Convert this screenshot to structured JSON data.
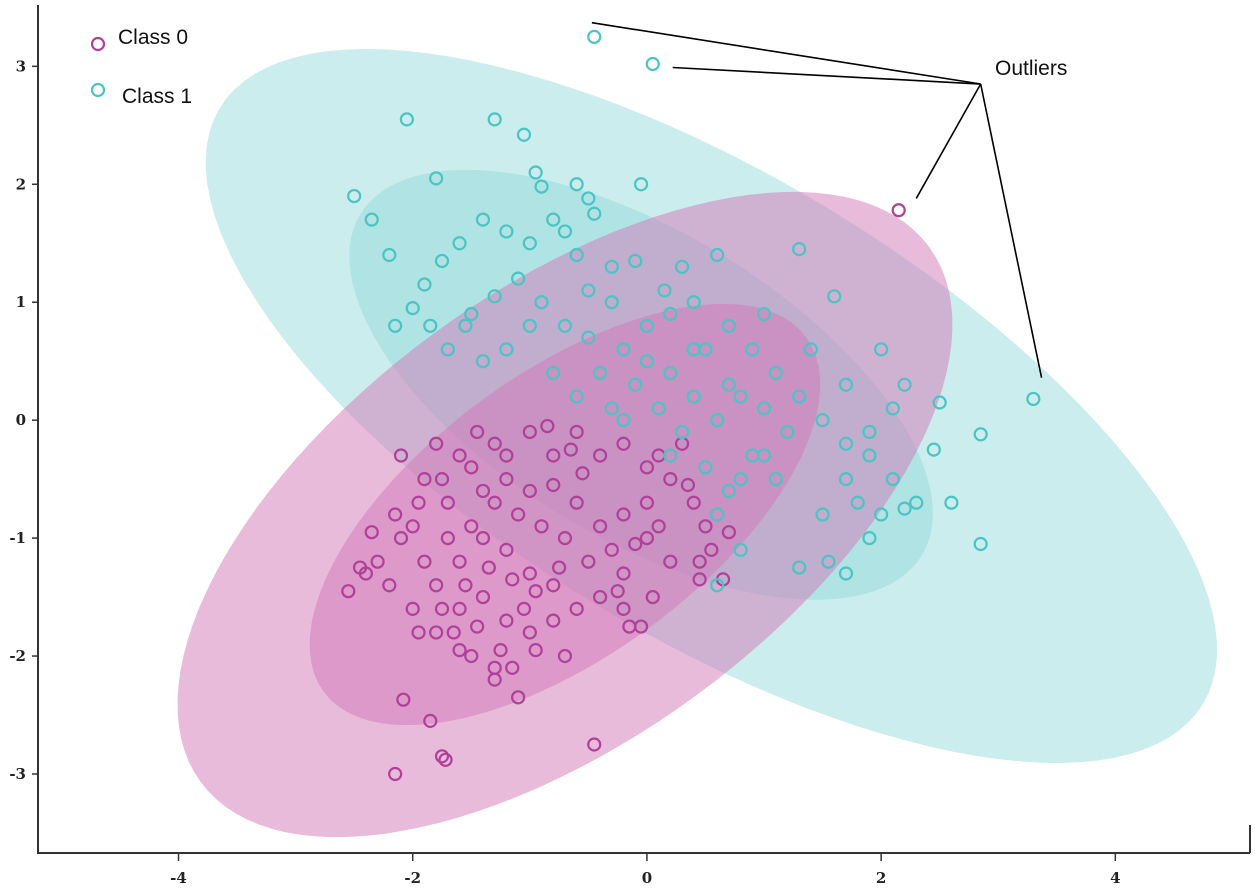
{
  "chart_data": {
    "type": "scatter",
    "title": "",
    "xlabel": "",
    "ylabel": "",
    "xlim": [
      -5.2,
      5.15
    ],
    "ylim": [
      -3.67,
      3.52
    ],
    "xticks": [
      -4,
      -2,
      0,
      2,
      4
    ],
    "yticks": [
      3,
      2,
      1,
      0,
      -1,
      -2,
      -3
    ],
    "xtick_labels": [
      "-4",
      "-2",
      "0",
      "2",
      "4"
    ],
    "ytick_labels": [
      "3",
      "2",
      "1",
      "0",
      "-1",
      "-2",
      "-3"
    ],
    "grid": false,
    "legend_position": "top-left",
    "annotation": {
      "text": "Outliers",
      "anchor": [
        2.85,
        2.85
      ],
      "targets": [
        [
          -0.47,
          3.37
        ],
        [
          0.22,
          2.99
        ],
        [
          2.3,
          1.88
        ],
        [
          3.37,
          0.36
        ]
      ]
    },
    "series": [
      {
        "name": "Class 0",
        "color": "#b0409a",
        "ellipse_fill": "#d278b8",
        "ellipses": [
          {
            "center": [
              -0.7,
              -0.8
            ],
            "semi_axes": [
              3.85,
              1.9
            ],
            "angle_deg": 36
          },
          {
            "center": [
              -0.7,
              -0.8
            ],
            "semi_axes": [
              2.55,
              1.2
            ],
            "angle_deg": 36
          }
        ],
        "points": [
          [
            -2.15,
            -3.0
          ],
          [
            -0.45,
            -2.75
          ],
          [
            -1.75,
            -2.85
          ],
          [
            -1.72,
            -2.88
          ],
          [
            -1.85,
            -2.55
          ],
          [
            -2.08,
            -2.37
          ],
          [
            -0.7,
            -2.0
          ],
          [
            -0.95,
            -1.95
          ],
          [
            -1.15,
            -2.1
          ],
          [
            -1.3,
            -2.2
          ],
          [
            -1.5,
            -2.0
          ],
          [
            -1.6,
            -1.95
          ],
          [
            -1.8,
            -1.8
          ],
          [
            -2.0,
            -1.6
          ],
          [
            -2.2,
            -1.4
          ],
          [
            -2.4,
            -1.3
          ],
          [
            -2.55,
            -1.45
          ],
          [
            -2.3,
            -1.2
          ],
          [
            -2.1,
            -1.0
          ],
          [
            -2.15,
            -0.8
          ],
          [
            -2.1,
            -0.3
          ],
          [
            -1.9,
            -0.5
          ],
          [
            -1.7,
            -0.7
          ],
          [
            -1.5,
            -0.4
          ],
          [
            -1.3,
            -0.2
          ],
          [
            -1.2,
            -0.5
          ],
          [
            -1.0,
            -0.6
          ],
          [
            -0.8,
            -0.3
          ],
          [
            -0.6,
            -0.1
          ],
          [
            -0.4,
            -0.3
          ],
          [
            -0.2,
            -0.2
          ],
          [
            0,
            -0.4
          ],
          [
            0.2,
            -0.5
          ],
          [
            0.4,
            -0.7
          ],
          [
            0.5,
            -0.9
          ],
          [
            0.55,
            -1.1
          ],
          [
            0.45,
            -1.35
          ],
          [
            0.2,
            -1.2
          ],
          [
            0,
            -1.0
          ],
          [
            -0.2,
            -1.3
          ],
          [
            -0.4,
            -1.5
          ],
          [
            -0.6,
            -1.6
          ],
          [
            -0.8,
            -1.4
          ],
          [
            -1.0,
            -1.3
          ],
          [
            -1.2,
            -1.1
          ],
          [
            -1.4,
            -1.0
          ],
          [
            -1.6,
            -1.2
          ],
          [
            -1.8,
            -1.4
          ],
          [
            -1.6,
            -1.6
          ],
          [
            -1.4,
            -1.5
          ],
          [
            -1.2,
            -1.7
          ],
          [
            -1.0,
            -1.8
          ],
          [
            -0.8,
            -1.7
          ],
          [
            -0.2,
            -1.6
          ],
          [
            -0.15,
            -1.75
          ],
          [
            -0.5,
            -1.2
          ],
          [
            -0.7,
            -1.0
          ],
          [
            -0.9,
            -0.9
          ],
          [
            -1.1,
            -0.8
          ],
          [
            -1.3,
            -0.7
          ],
          [
            -1.5,
            -0.9
          ],
          [
            -1.7,
            -1.0
          ],
          [
            -1.9,
            -1.2
          ],
          [
            -2.0,
            -0.9
          ],
          [
            -1.8,
            -0.2
          ],
          [
            -1.6,
            -0.3
          ],
          [
            -1.4,
            -0.6
          ],
          [
            -1.2,
            -0.3
          ],
          [
            -1.0,
            -0.1
          ],
          [
            -0.8,
            -0.55
          ],
          [
            -0.6,
            -0.7
          ],
          [
            -0.4,
            -0.9
          ],
          [
            -0.2,
            -0.8
          ],
          [
            0,
            -0.7
          ],
          [
            0.1,
            -0.3
          ],
          [
            0.3,
            -0.2
          ],
          [
            0.35,
            -0.55
          ],
          [
            0.1,
            -0.9
          ],
          [
            -0.1,
            -1.05
          ],
          [
            -0.3,
            -1.1
          ],
          [
            -0.55,
            -0.45
          ],
          [
            -0.75,
            -1.25
          ],
          [
            -0.95,
            -1.45
          ],
          [
            -1.15,
            -1.35
          ],
          [
            -1.35,
            -1.25
          ],
          [
            -1.55,
            -1.4
          ],
          [
            -1.75,
            -1.6
          ],
          [
            -1.95,
            -1.8
          ],
          [
            -1.65,
            -1.8
          ],
          [
            -1.45,
            -1.75
          ],
          [
            -1.25,
            -1.95
          ],
          [
            -1.05,
            -1.6
          ],
          [
            -0.85,
            -0.05
          ],
          [
            -0.65,
            -0.25
          ],
          [
            -1.45,
            -0.1
          ],
          [
            -1.75,
            -0.5
          ],
          [
            -1.95,
            -0.7
          ],
          [
            -0.25,
            -1.45
          ],
          [
            0.05,
            -1.5
          ],
          [
            0.45,
            -1.2
          ],
          [
            0.65,
            -1.35
          ],
          [
            0.7,
            -0.95
          ],
          [
            -2.35,
            -0.95
          ],
          [
            -2.45,
            -1.25
          ],
          [
            -1.1,
            -2.35
          ],
          [
            -1.3,
            -2.1
          ],
          [
            -0.05,
            -1.75
          ],
          [
            2.15,
            1.78
          ]
        ]
      },
      {
        "name": "Class 1",
        "color": "#4cc4c4",
        "ellipse_fill": "#8fd6d6",
        "ellipses": [
          {
            "center": [
              0.55,
              0.12
            ],
            "semi_axes": [
              4.9,
              1.95
            ],
            "angle_deg": -31
          },
          {
            "center": [
              -0.05,
              0.3
            ],
            "semi_axes": [
              2.8,
              1.3
            ],
            "angle_deg": -31
          }
        ],
        "points": [
          [
            -0.45,
            3.25
          ],
          [
            0.05,
            3.02
          ],
          [
            3.3,
            0.18
          ],
          [
            -2.05,
            2.55
          ],
          [
            -1.3,
            2.55
          ],
          [
            -1.05,
            2.42
          ],
          [
            -2.5,
            1.9
          ],
          [
            -2.35,
            1.7
          ],
          [
            -2.2,
            1.4
          ],
          [
            -1.8,
            2.05
          ],
          [
            -0.95,
            2.1
          ],
          [
            -0.9,
            1.98
          ],
          [
            -0.6,
            2.0
          ],
          [
            -0.5,
            1.88
          ],
          [
            -0.45,
            1.75
          ],
          [
            -0.05,
            2.0
          ],
          [
            -1.4,
            1.7
          ],
          [
            -1.2,
            1.6
          ],
          [
            -1.0,
            1.5
          ],
          [
            -0.8,
            1.7
          ],
          [
            -0.7,
            1.6
          ],
          [
            -0.6,
            1.4
          ],
          [
            -1.6,
            1.5
          ],
          [
            -1.75,
            1.35
          ],
          [
            -1.9,
            1.15
          ],
          [
            -2.0,
            0.95
          ],
          [
            -2.15,
            0.8
          ],
          [
            -1.85,
            0.8
          ],
          [
            -1.7,
            0.6
          ],
          [
            -1.5,
            0.9
          ],
          [
            -1.3,
            1.05
          ],
          [
            -1.1,
            1.2
          ],
          [
            -0.9,
            1.0
          ],
          [
            -0.7,
            0.8
          ],
          [
            -0.5,
            0.7
          ],
          [
            -1.0,
            0.8
          ],
          [
            -1.2,
            0.6
          ],
          [
            -1.4,
            0.5
          ],
          [
            -0.8,
            0.4
          ],
          [
            -0.6,
            0.2
          ],
          [
            -0.4,
            0.4
          ],
          [
            -0.2,
            0.6
          ],
          [
            0,
            0.8
          ],
          [
            0.2,
            0.9
          ],
          [
            0.4,
            1.0
          ],
          [
            0.5,
            0.6
          ],
          [
            0.7,
            0.8
          ],
          [
            0.9,
            0.6
          ],
          [
            1.1,
            0.4
          ],
          [
            1.3,
            0.2
          ],
          [
            1.5,
            0
          ],
          [
            1.7,
            -0.2
          ],
          [
            1.9,
            -0.3
          ],
          [
            2.1,
            -0.5
          ],
          [
            2.3,
            -0.7
          ],
          [
            2.6,
            -0.7
          ],
          [
            2.85,
            -1.05
          ],
          [
            2.85,
            -0.12
          ],
          [
            2.5,
            0.15
          ],
          [
            2.45,
            -0.25
          ],
          [
            2.2,
            0.3
          ],
          [
            2.1,
            0.1
          ],
          [
            1.9,
            -0.1
          ],
          [
            1.7,
            -0.5
          ],
          [
            1.5,
            -0.8
          ],
          [
            1.3,
            -1.25
          ],
          [
            1.7,
            -1.3
          ],
          [
            1.55,
            -1.2
          ],
          [
            1.9,
            -1.0
          ],
          [
            2.0,
            -0.8
          ],
          [
            0.3,
            1.3
          ],
          [
            0.6,
            1.4
          ],
          [
            1.3,
            1.45
          ],
          [
            1.6,
            1.05
          ],
          [
            1.4,
            0.6
          ],
          [
            1.7,
            0.3
          ],
          [
            1.2,
            -0.1
          ],
          [
            1.0,
            -0.3
          ],
          [
            0.8,
            -0.5
          ],
          [
            0.6,
            -0.8
          ],
          [
            0.7,
            -0.6
          ],
          [
            0.9,
            -0.3
          ],
          [
            1.1,
            -0.5
          ],
          [
            0.5,
            -0.4
          ],
          [
            0.3,
            -0.1
          ],
          [
            0.1,
            0.1
          ],
          [
            -0.1,
            0.3
          ],
          [
            -0.3,
            0.1
          ],
          [
            0.2,
            0.4
          ],
          [
            0.4,
            0.2
          ],
          [
            0.6,
            0.0
          ],
          [
            0.8,
            0.2
          ],
          [
            1.0,
            0.1
          ],
          [
            0.6,
            -1.4
          ],
          [
            0.8,
            -1.1
          ],
          [
            0.0,
            0.5
          ],
          [
            -0.2,
            0.0
          ],
          [
            0.4,
            0.6
          ],
          [
            0.7,
            0.3
          ],
          [
            -1.55,
            0.8
          ],
          [
            -0.3,
            1.0
          ],
          [
            -0.1,
            1.35
          ],
          [
            0.15,
            1.1
          ],
          [
            2.2,
            -0.75
          ],
          [
            2.0,
            0.6
          ],
          [
            1.8,
            -0.7
          ],
          [
            1.0,
            0.9
          ],
          [
            0.2,
            -0.3
          ],
          [
            -0.5,
            1.1
          ],
          [
            -0.3,
            1.3
          ]
        ]
      }
    ]
  }
}
